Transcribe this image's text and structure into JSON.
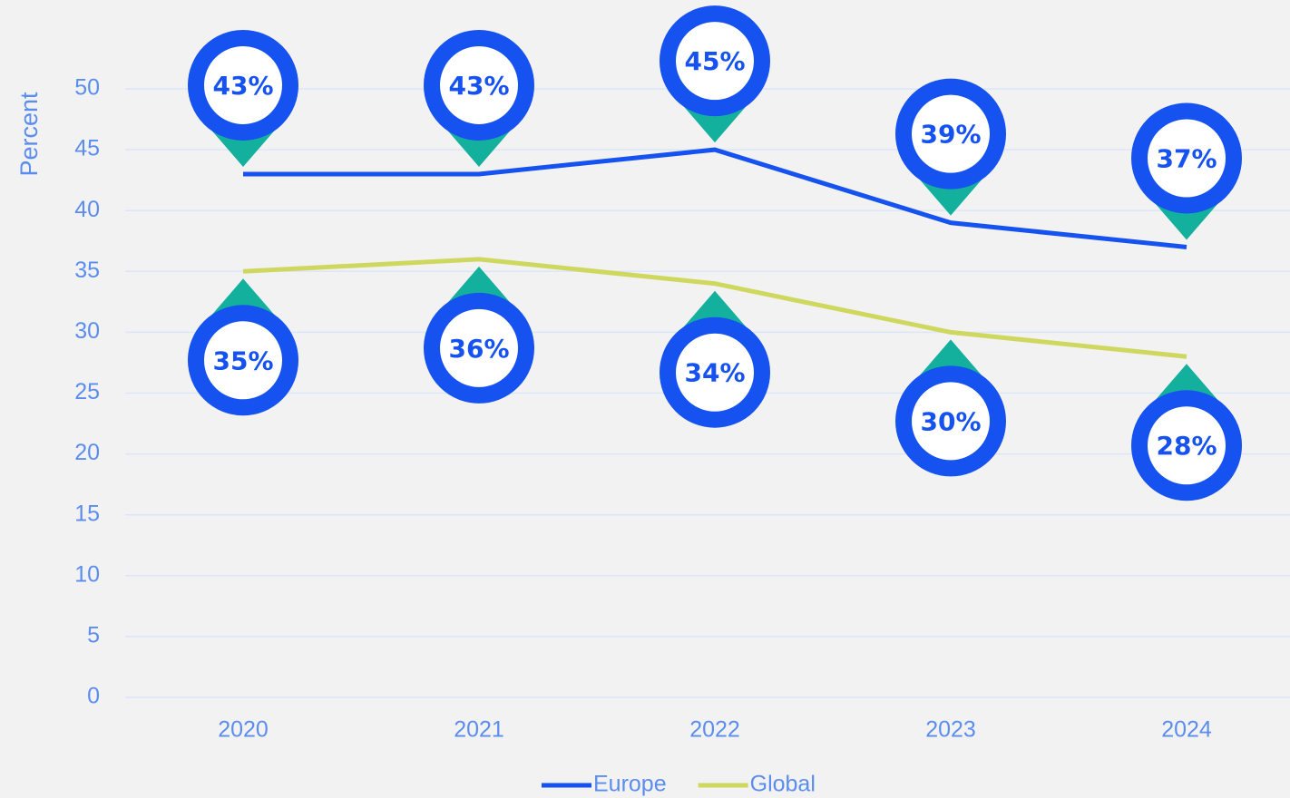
{
  "chart_data": {
    "type": "line",
    "y_label": "Percent",
    "categories": [
      "2020",
      "2021",
      "2022",
      "2023",
      "2024"
    ],
    "series": [
      {
        "name": "Europe",
        "color": "#1552f0",
        "values": [
          43,
          43,
          45,
          39,
          37
        ],
        "value_labels": [
          "43%",
          "43%",
          "45%",
          "39%",
          "37%"
        ],
        "label_position": "above"
      },
      {
        "name": "Global",
        "color": "#cfd85e",
        "values": [
          35,
          36,
          34,
          30,
          28
        ],
        "value_labels": [
          "35%",
          "36%",
          "34%",
          "30%",
          "28%"
        ],
        "label_position": "below"
      }
    ],
    "marker_ring_color": "#1552f0",
    "marker_tip_color": "#14b09e",
    "ylim": [
      0,
      55
    ],
    "yticks": [
      0,
      5,
      10,
      15,
      20,
      25,
      30,
      35,
      40,
      45,
      50
    ],
    "grid": true,
    "legend": "bottom"
  }
}
